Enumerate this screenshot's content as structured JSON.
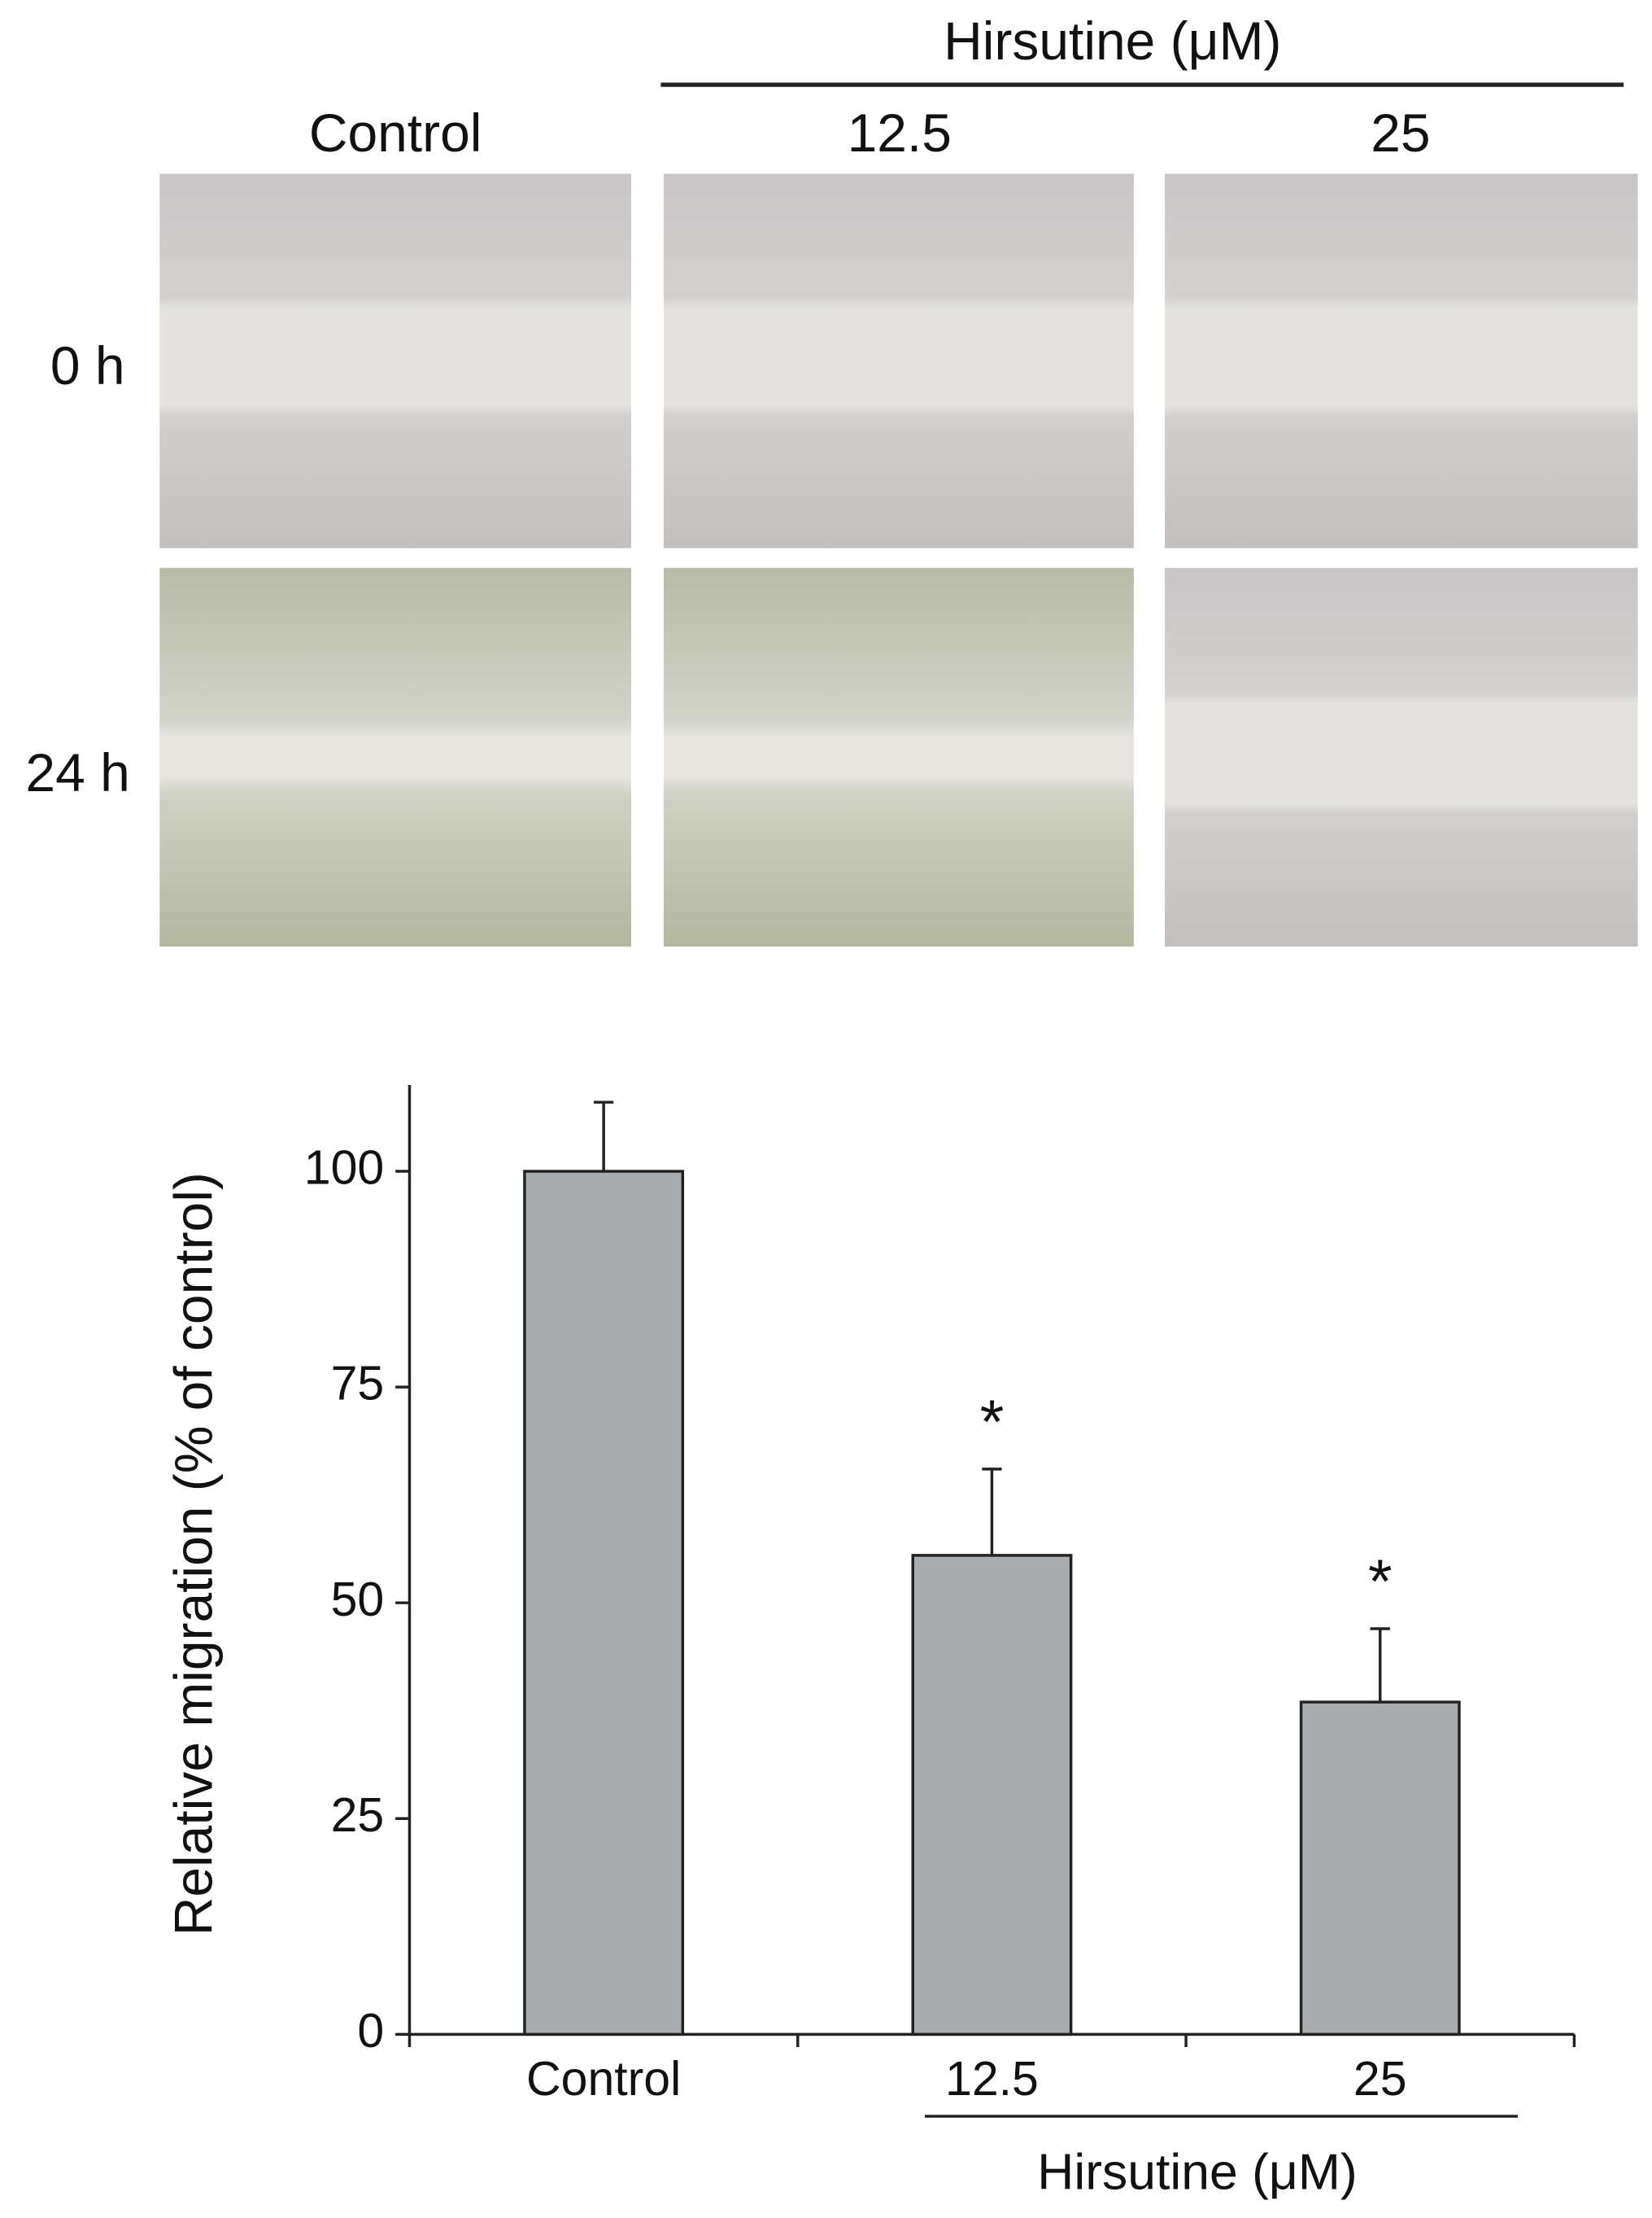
{
  "figure": {
    "group_label": "Hirsutine (μM)",
    "columns": [
      "Control",
      "12.5",
      "25"
    ],
    "rows": [
      "0 h",
      "24 h"
    ]
  },
  "chart_data": {
    "type": "bar",
    "ylabel": "Relative migration (% of control)",
    "categories": [
      "Control",
      "12.5",
      "25"
    ],
    "values": [
      100,
      55.5,
      38.5
    ],
    "errors": [
      8,
      10,
      8.5
    ],
    "annotations": [
      null,
      "*",
      "*"
    ],
    "group_label": "Hirsutine (μM)",
    "color": "#a9adb0",
    "ylim": [
      0,
      110
    ],
    "yticks": [
      0,
      25,
      50,
      75,
      100
    ]
  }
}
